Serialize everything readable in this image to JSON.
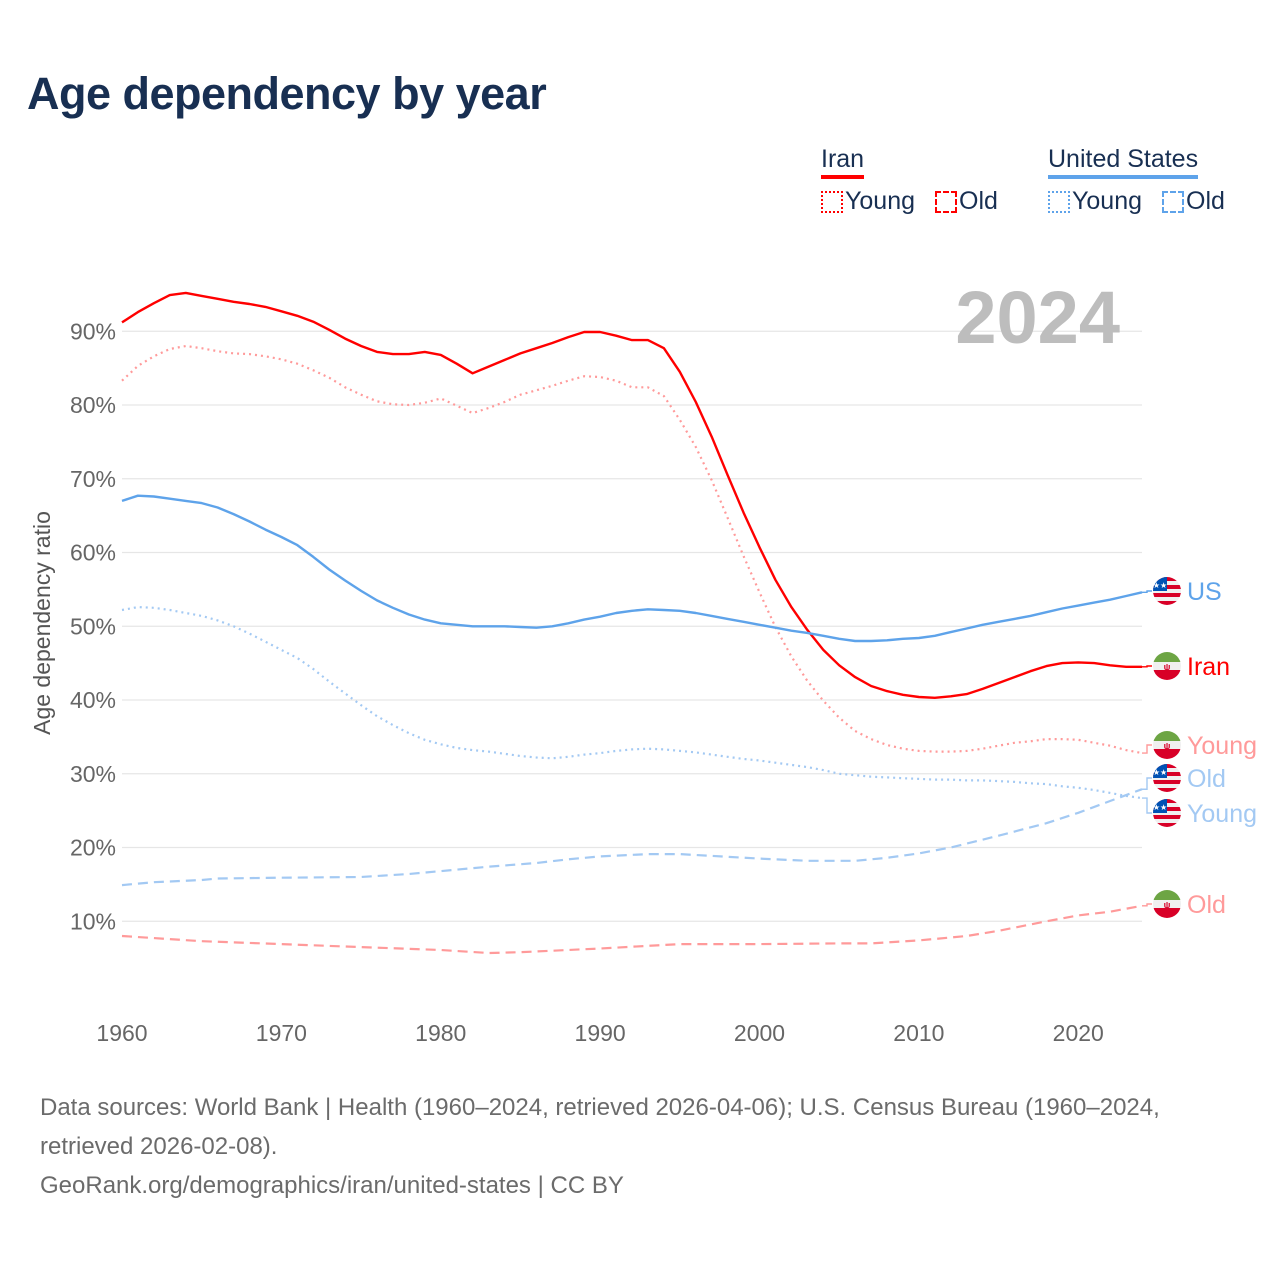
{
  "title": "Age dependency by year",
  "legend": {
    "groups": [
      {
        "name": "Iran",
        "color": "#ff0000",
        "items": [
          "Young",
          "Old"
        ]
      },
      {
        "name": "United States",
        "color": "#5ea3ea",
        "items": [
          "Young",
          "Old"
        ]
      }
    ]
  },
  "year_watermark": "2024",
  "footer": {
    "sources": "Data sources: World Bank | Health (1960–2024, retrieved 2026-04-06); U.S. Census Bureau (1960–2024, retrieved 2026-02-08).",
    "link": "GeoRank.org/demographics/iran/united-states | CC BY"
  },
  "chart_data": {
    "type": "line",
    "title": "Age dependency by year",
    "ylabel": "Age dependency ratio",
    "xlabel": "",
    "xlim": [
      1960,
      2024
    ],
    "ylim": [
      0,
      100
    ],
    "xticks": [
      "1960",
      "1970",
      "1980",
      "1990",
      "2000",
      "2010",
      "2020"
    ],
    "yticks": [
      "10%",
      "20%",
      "30%",
      "40%",
      "50%",
      "60%",
      "70%",
      "80%",
      "90%"
    ],
    "grid": true,
    "series": [
      {
        "name": "Iran",
        "end_label": "Iran",
        "color": "#ff0000",
        "style": "solid",
        "flag": "iran",
        "x": [
          1960,
          1961,
          1962,
          1963,
          1964,
          1965,
          1966,
          1967,
          1968,
          1969,
          1970,
          1971,
          1972,
          1973,
          1974,
          1975,
          1976,
          1977,
          1978,
          1979,
          1980,
          1981,
          1982,
          1983,
          1984,
          1985,
          1986,
          1987,
          1988,
          1989,
          1990,
          1991,
          1992,
          1993,
          1994,
          1995,
          1996,
          1997,
          1998,
          1999,
          2000,
          2001,
          2002,
          2003,
          2004,
          2005,
          2006,
          2007,
          2008,
          2009,
          2010,
          2011,
          2012,
          2013,
          2014,
          2015,
          2016,
          2017,
          2018,
          2019,
          2020,
          2021,
          2022,
          2023,
          2024
        ],
        "y": [
          91.2,
          92.6,
          93.8,
          94.9,
          95.2,
          94.8,
          94.4,
          94.0,
          93.7,
          93.3,
          92.7,
          92.1,
          91.3,
          90.2,
          89.0,
          88.0,
          87.2,
          86.9,
          86.9,
          87.2,
          86.8,
          85.6,
          84.3,
          85.2,
          86.1,
          87.0,
          87.7,
          88.4,
          89.2,
          89.9,
          89.9,
          89.4,
          88.8,
          88.8,
          87.7,
          84.5,
          80.4,
          75.7,
          70.5,
          65.4,
          60.7,
          56.3,
          52.6,
          49.5,
          46.8,
          44.7,
          43.1,
          41.9,
          41.2,
          40.7,
          40.4,
          40.3,
          40.5,
          40.8,
          41.5,
          42.3,
          43.1,
          43.9,
          44.6,
          45.0,
          45.1,
          45.0,
          44.7,
          44.5,
          44.5
        ]
      },
      {
        "name": "Iran Young",
        "end_label": "Young",
        "color": "#ff9a9a",
        "style": "dotted",
        "flag": "iran",
        "x": [
          1960,
          1961,
          1962,
          1963,
          1964,
          1965,
          1966,
          1967,
          1968,
          1969,
          1970,
          1971,
          1972,
          1973,
          1974,
          1975,
          1976,
          1977,
          1978,
          1979,
          1980,
          1981,
          1982,
          1983,
          1984,
          1985,
          1986,
          1987,
          1988,
          1989,
          1990,
          1991,
          1992,
          1993,
          1994,
          1995,
          1996,
          1997,
          1998,
          1999,
          2000,
          2001,
          2002,
          2003,
          2004,
          2005,
          2006,
          2007,
          2008,
          2009,
          2010,
          2011,
          2012,
          2013,
          2014,
          2015,
          2016,
          2017,
          2018,
          2019,
          2020,
          2021,
          2022,
          2023,
          2024
        ],
        "y": [
          83.3,
          85.3,
          86.6,
          87.6,
          88.0,
          87.7,
          87.3,
          87.0,
          86.9,
          86.6,
          86.2,
          85.6,
          84.7,
          83.7,
          82.4,
          81.4,
          80.5,
          80.1,
          80.0,
          80.3,
          80.9,
          79.9,
          78.9,
          79.6,
          80.4,
          81.4,
          82.0,
          82.6,
          83.3,
          83.9,
          83.8,
          83.3,
          82.4,
          82.4,
          81.2,
          78.0,
          74.3,
          69.8,
          64.7,
          59.5,
          54.6,
          49.9,
          45.9,
          42.6,
          39.9,
          37.6,
          35.8,
          34.7,
          33.9,
          33.4,
          33.1,
          33.0,
          33.0,
          33.1,
          33.4,
          33.8,
          34.2,
          34.4,
          34.7,
          34.7,
          34.6,
          34.2,
          33.8,
          33.2,
          32.8
        ]
      },
      {
        "name": "Iran Old",
        "end_label": "Old",
        "color": "#ff9a9a",
        "style": "dashed",
        "flag": "iran",
        "x": [
          1960,
          1965,
          1970,
          1975,
          1980,
          1983,
          1985,
          1990,
          1995,
          2000,
          2005,
          2007,
          2010,
          2013,
          2015,
          2018,
          2020,
          2022,
          2024
        ],
        "y": [
          8.0,
          7.3,
          6.9,
          6.5,
          6.1,
          5.7,
          5.8,
          6.3,
          6.9,
          6.9,
          7.0,
          7.0,
          7.4,
          8.0,
          8.7,
          10.0,
          10.8,
          11.3,
          12.1
        ]
      },
      {
        "name": "United States",
        "end_label": "US",
        "color": "#5ea3ea",
        "style": "solid",
        "flag": "us",
        "x": [
          1960,
          1961,
          1962,
          1963,
          1964,
          1965,
          1966,
          1967,
          1968,
          1969,
          1970,
          1971,
          1972,
          1973,
          1974,
          1975,
          1976,
          1977,
          1978,
          1979,
          1980,
          1981,
          1982,
          1983,
          1984,
          1985,
          1986,
          1987,
          1988,
          1989,
          1990,
          1991,
          1992,
          1993,
          1994,
          1995,
          1996,
          1997,
          1998,
          1999,
          2000,
          2001,
          2002,
          2003,
          2004,
          2005,
          2006,
          2007,
          2008,
          2009,
          2010,
          2011,
          2012,
          2013,
          2014,
          2015,
          2016,
          2017,
          2018,
          2019,
          2020,
          2021,
          2022,
          2023,
          2024
        ],
        "y": [
          67.0,
          67.7,
          67.6,
          67.3,
          67.0,
          66.7,
          66.1,
          65.2,
          64.2,
          63.1,
          62.1,
          61.0,
          59.4,
          57.7,
          56.2,
          54.8,
          53.5,
          52.5,
          51.6,
          50.9,
          50.4,
          50.2,
          50.0,
          50.0,
          50.0,
          49.9,
          49.8,
          50.0,
          50.4,
          50.9,
          51.3,
          51.8,
          52.1,
          52.3,
          52.2,
          52.1,
          51.8,
          51.4,
          51.0,
          50.6,
          50.2,
          49.8,
          49.4,
          49.1,
          48.7,
          48.3,
          48.0,
          48.0,
          48.1,
          48.3,
          48.4,
          48.7,
          49.2,
          49.7,
          50.2,
          50.6,
          51.0,
          51.4,
          51.9,
          52.4,
          52.8,
          53.2,
          53.6,
          54.1,
          54.6
        ]
      },
      {
        "name": "United States Young",
        "end_label": "Young",
        "color": "#a3c9f3",
        "style": "dotted",
        "flag": "us",
        "x": [
          1960,
          1961,
          1962,
          1963,
          1964,
          1965,
          1966,
          1967,
          1968,
          1969,
          1970,
          1971,
          1972,
          1973,
          1974,
          1975,
          1976,
          1977,
          1978,
          1979,
          1980,
          1981,
          1982,
          1983,
          1984,
          1985,
          1986,
          1987,
          1988,
          1989,
          1990,
          1991,
          1992,
          1993,
          1994,
          1995,
          1996,
          1997,
          1998,
          1999,
          2000,
          2001,
          2002,
          2003,
          2004,
          2005,
          2006,
          2007,
          2008,
          2009,
          2010,
          2011,
          2012,
          2013,
          2014,
          2015,
          2016,
          2017,
          2018,
          2019,
          2020,
          2021,
          2022,
          2023,
          2024
        ],
        "y": [
          52.2,
          52.6,
          52.5,
          52.2,
          51.8,
          51.4,
          50.8,
          50.0,
          49.0,
          47.9,
          46.8,
          45.7,
          44.2,
          42.5,
          40.9,
          39.3,
          37.8,
          36.6,
          35.5,
          34.6,
          34.0,
          33.5,
          33.2,
          33.0,
          32.7,
          32.4,
          32.2,
          32.1,
          32.3,
          32.6,
          32.8,
          33.1,
          33.3,
          33.4,
          33.3,
          33.1,
          32.9,
          32.6,
          32.3,
          32.0,
          31.8,
          31.5,
          31.2,
          30.9,
          30.5,
          30.0,
          29.8,
          29.6,
          29.5,
          29.4,
          29.3,
          29.2,
          29.2,
          29.1,
          29.1,
          29.0,
          28.9,
          28.7,
          28.6,
          28.3,
          28.1,
          27.8,
          27.4,
          27.0,
          26.7
        ]
      },
      {
        "name": "United States Old",
        "end_label": "Old",
        "color": "#a3c9f3",
        "style": "dashed",
        "flag": "us",
        "x": [
          1960,
          1962,
          1965,
          1966,
          1970,
          1975,
          1978,
          1980,
          1983,
          1986,
          1988,
          1990,
          1993,
          1995,
          2000,
          2003,
          2006,
          2008,
          2010,
          2012,
          2015,
          2018,
          2020,
          2022,
          2024
        ],
        "y": [
          14.9,
          15.3,
          15.6,
          15.8,
          15.9,
          16.0,
          16.4,
          16.8,
          17.4,
          17.9,
          18.4,
          18.8,
          19.1,
          19.1,
          18.5,
          18.2,
          18.2,
          18.6,
          19.2,
          20.0,
          21.6,
          23.3,
          24.7,
          26.3,
          27.9
        ]
      }
    ]
  }
}
